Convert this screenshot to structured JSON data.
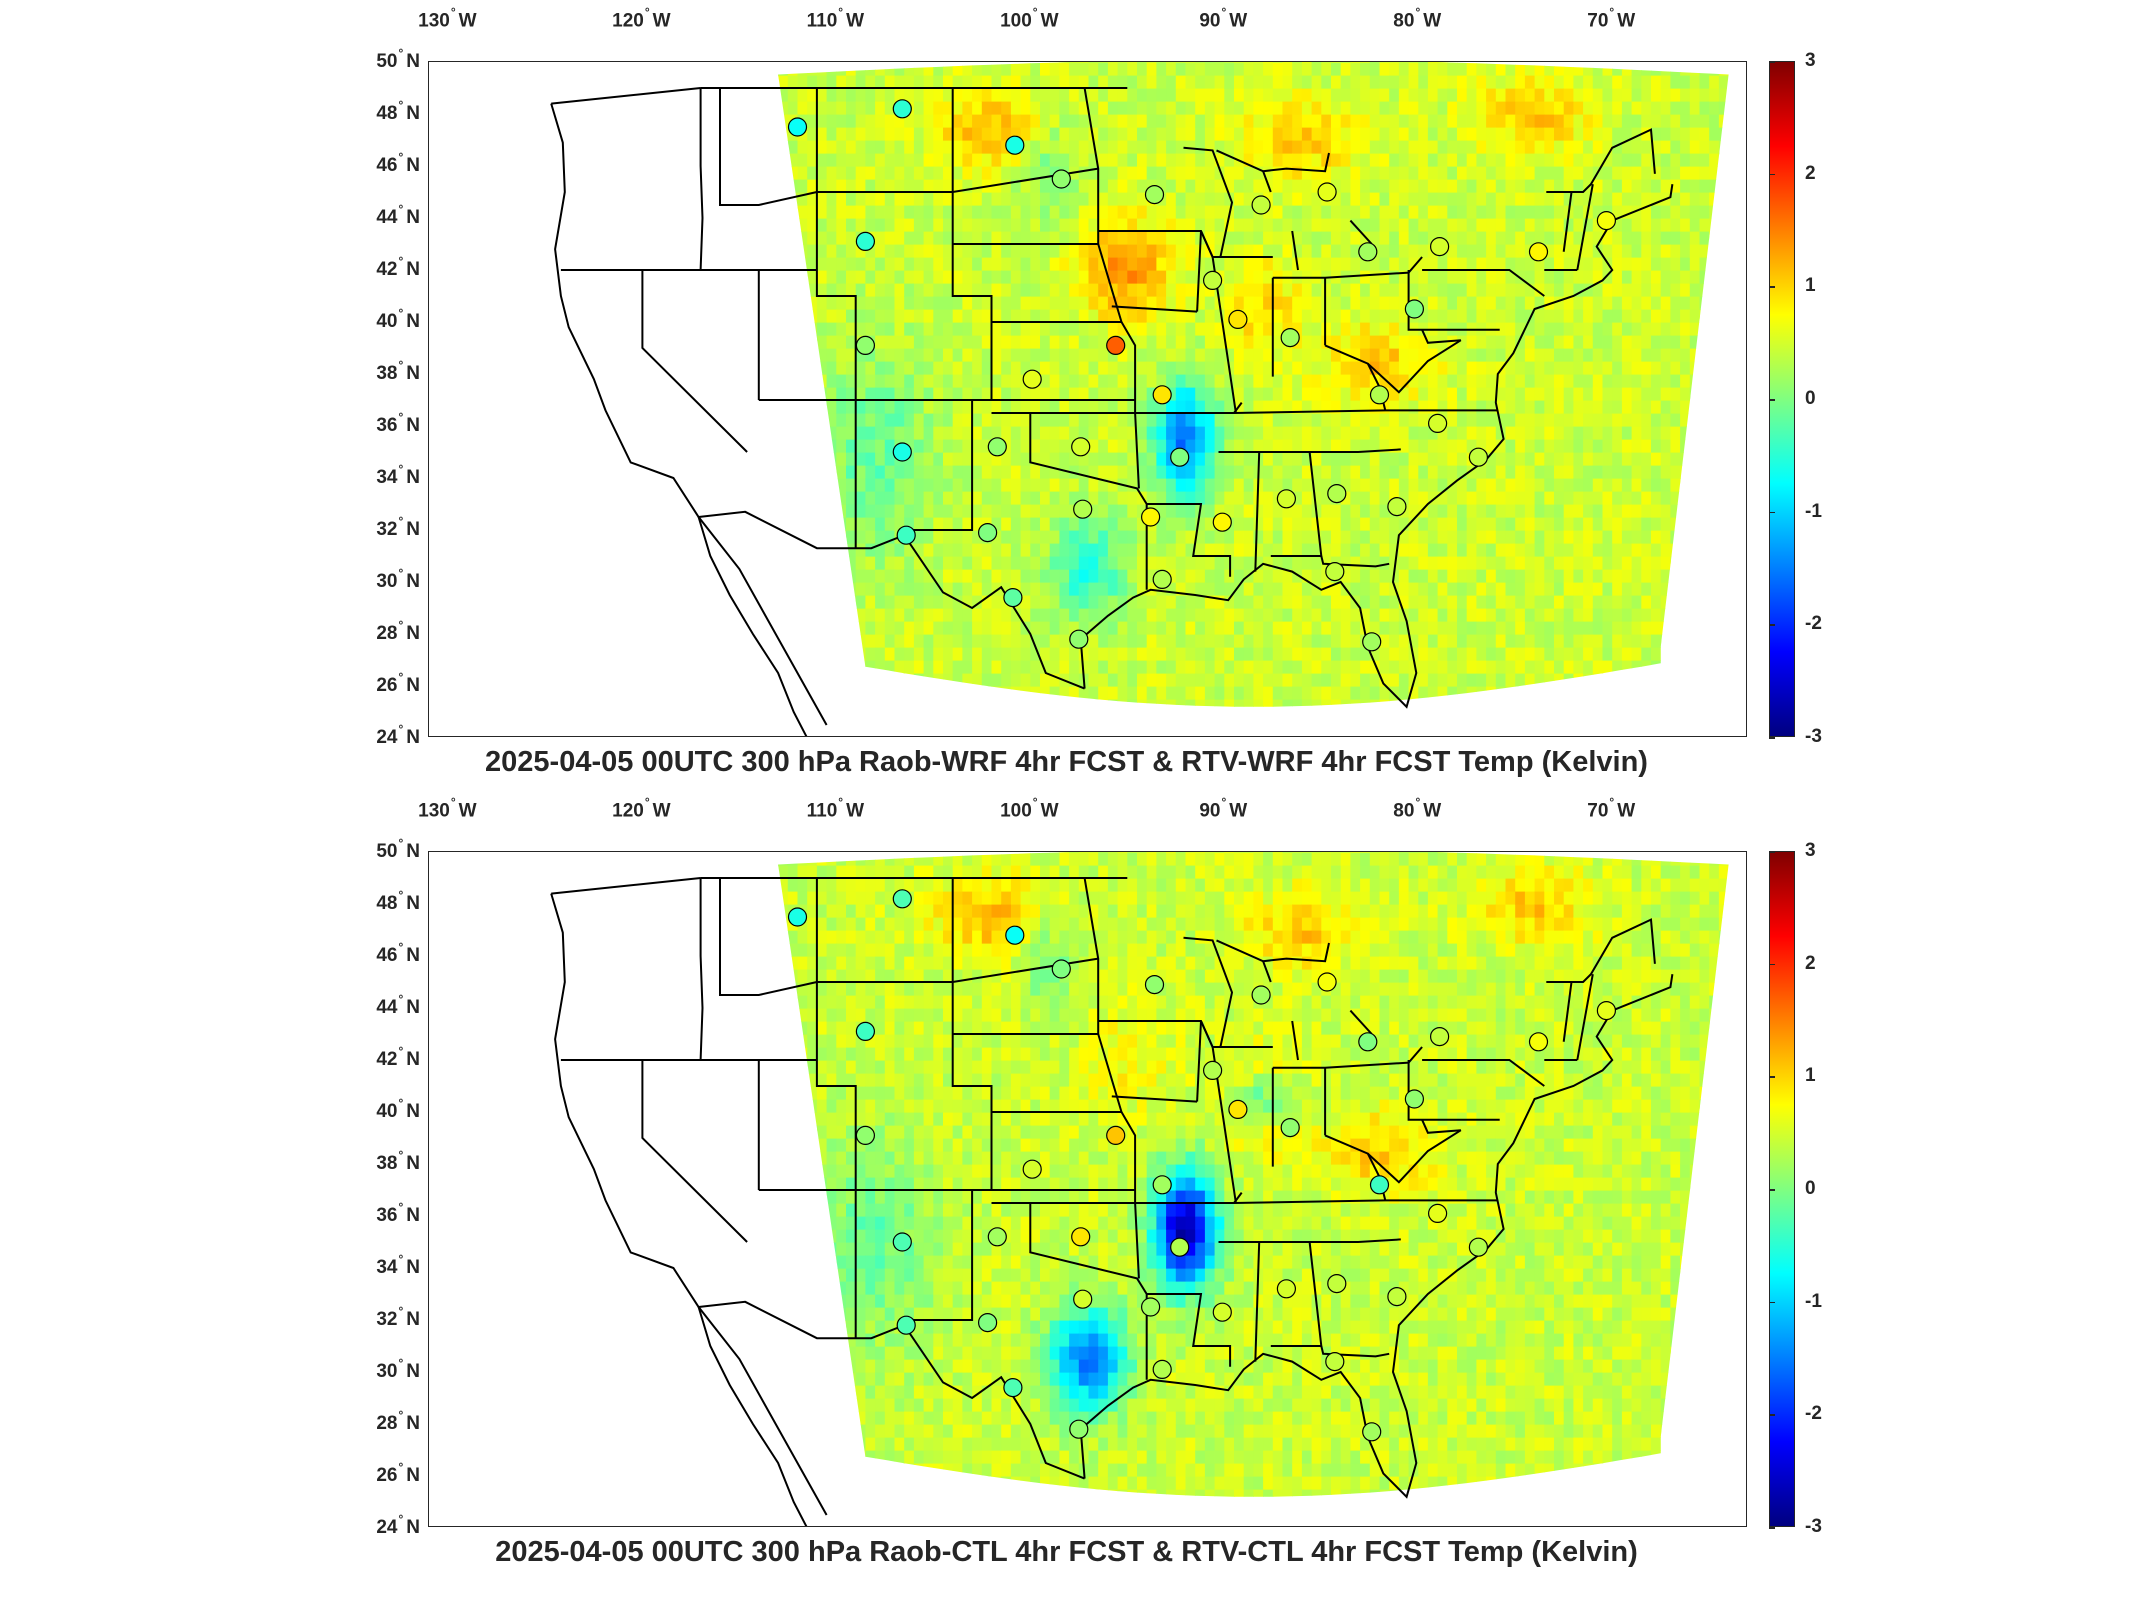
{
  "panels": [
    {
      "id": "top",
      "title": "2025-04-05 00UTC 300 hPa Raob-WRF 4hr FCST & RTV-WRF 4hr FCST Temp (Kelvin)",
      "stations": [
        {
          "lon": -112.0,
          "lat": 47.5,
          "value": -0.7
        },
        {
          "lon": -106.6,
          "lat": 48.2,
          "value": -0.5
        },
        {
          "lon": -100.8,
          "lat": 46.8,
          "value": -0.6
        },
        {
          "lon": -98.4,
          "lat": 45.5,
          "value": 0.1
        },
        {
          "lon": -93.6,
          "lat": 44.9,
          "value": 0.2
        },
        {
          "lon": -88.1,
          "lat": 44.5,
          "value": 0.4
        },
        {
          "lon": -84.7,
          "lat": 45.0,
          "value": 0.6
        },
        {
          "lon": -82.6,
          "lat": 42.7,
          "value": 0.2
        },
        {
          "lon": -78.9,
          "lat": 42.9,
          "value": 0.5
        },
        {
          "lon": -73.8,
          "lat": 42.7,
          "value": 0.8
        },
        {
          "lon": -70.3,
          "lat": 43.9,
          "value": 0.7
        },
        {
          "lon": -108.5,
          "lat": 43.1,
          "value": -0.5
        },
        {
          "lon": -90.6,
          "lat": 41.6,
          "value": 0.4
        },
        {
          "lon": -108.5,
          "lat": 39.1,
          "value": 0.1
        },
        {
          "lon": -89.3,
          "lat": 40.1,
          "value": 0.9
        },
        {
          "lon": -86.6,
          "lat": 39.4,
          "value": 0.2
        },
        {
          "lon": -80.2,
          "lat": 40.5,
          "value": 0.0
        },
        {
          "lon": -95.6,
          "lat": 39.1,
          "value": 1.7
        },
        {
          "lon": -99.9,
          "lat": 37.8,
          "value": 0.6
        },
        {
          "lon": -93.2,
          "lat": 37.2,
          "value": 0.9
        },
        {
          "lon": -82.0,
          "lat": 37.2,
          "value": 0.3
        },
        {
          "lon": -79.0,
          "lat": 36.1,
          "value": 0.5
        },
        {
          "lon": -106.6,
          "lat": 35.0,
          "value": -0.6
        },
        {
          "lon": -101.7,
          "lat": 35.2,
          "value": 0.1
        },
        {
          "lon": -97.4,
          "lat": 35.2,
          "value": 0.5
        },
        {
          "lon": -92.3,
          "lat": 34.8,
          "value": 0.0
        },
        {
          "lon": -76.9,
          "lat": 34.8,
          "value": 0.4
        },
        {
          "lon": -97.3,
          "lat": 32.8,
          "value": 0.3
        },
        {
          "lon": -93.8,
          "lat": 32.5,
          "value": 0.8
        },
        {
          "lon": -90.1,
          "lat": 32.3,
          "value": 0.8
        },
        {
          "lon": -86.8,
          "lat": 33.2,
          "value": 0.5
        },
        {
          "lon": -84.2,
          "lat": 33.4,
          "value": 0.3
        },
        {
          "lon": -81.1,
          "lat": 32.9,
          "value": 0.4
        },
        {
          "lon": -106.4,
          "lat": 31.8,
          "value": -0.4
        },
        {
          "lon": -102.2,
          "lat": 31.9,
          "value": 0.0
        },
        {
          "lon": -93.2,
          "lat": 30.1,
          "value": 0.3
        },
        {
          "lon": -84.3,
          "lat": 30.4,
          "value": 0.4
        },
        {
          "lon": -100.9,
          "lat": 29.4,
          "value": -0.2
        },
        {
          "lon": -97.5,
          "lat": 27.8,
          "value": 0.1
        },
        {
          "lon": -82.4,
          "lat": 27.7,
          "value": 0.2
        }
      ]
    },
    {
      "id": "bottom",
      "title": "2025-04-05 00UTC 300 hPa Raob-CTL 4hr FCST & RTV-CTL 4hr FCST Temp (Kelvin)",
      "stations": [
        {
          "lon": -112.0,
          "lat": 47.5,
          "value": -0.6
        },
        {
          "lon": -106.6,
          "lat": 48.2,
          "value": -0.3
        },
        {
          "lon": -100.8,
          "lat": 46.8,
          "value": -0.7
        },
        {
          "lon": -98.4,
          "lat": 45.5,
          "value": 0.0
        },
        {
          "lon": -93.6,
          "lat": 44.9,
          "value": 0.1
        },
        {
          "lon": -88.1,
          "lat": 44.5,
          "value": 0.2
        },
        {
          "lon": -84.7,
          "lat": 45.0,
          "value": 0.7
        },
        {
          "lon": -82.6,
          "lat": 42.7,
          "value": 0.0
        },
        {
          "lon": -78.9,
          "lat": 42.9,
          "value": 0.4
        },
        {
          "lon": -73.8,
          "lat": 42.7,
          "value": 0.7
        },
        {
          "lon": -70.3,
          "lat": 43.9,
          "value": 0.6
        },
        {
          "lon": -108.5,
          "lat": 43.1,
          "value": -0.4
        },
        {
          "lon": -90.6,
          "lat": 41.6,
          "value": 0.3
        },
        {
          "lon": -108.5,
          "lat": 39.1,
          "value": 0.1
        },
        {
          "lon": -89.3,
          "lat": 40.1,
          "value": 0.9
        },
        {
          "lon": -86.6,
          "lat": 39.4,
          "value": 0.1
        },
        {
          "lon": -80.2,
          "lat": 40.5,
          "value": 0.1
        },
        {
          "lon": -95.6,
          "lat": 39.1,
          "value": 1.1
        },
        {
          "lon": -99.9,
          "lat": 37.8,
          "value": 0.5
        },
        {
          "lon": -93.2,
          "lat": 37.2,
          "value": 0.2
        },
        {
          "lon": -82.0,
          "lat": 37.2,
          "value": -0.4
        },
        {
          "lon": -79.0,
          "lat": 36.1,
          "value": 0.6
        },
        {
          "lon": -106.6,
          "lat": 35.0,
          "value": -0.3
        },
        {
          "lon": -101.7,
          "lat": 35.2,
          "value": 0.2
        },
        {
          "lon": -97.4,
          "lat": 35.2,
          "value": 0.9
        },
        {
          "lon": -92.3,
          "lat": 34.8,
          "value": 0.3
        },
        {
          "lon": -76.9,
          "lat": 34.8,
          "value": 0.3
        },
        {
          "lon": -97.3,
          "lat": 32.8,
          "value": 0.5
        },
        {
          "lon": -93.8,
          "lat": 32.5,
          "value": 0.2
        },
        {
          "lon": -90.1,
          "lat": 32.3,
          "value": 0.5
        },
        {
          "lon": -86.8,
          "lat": 33.2,
          "value": 0.5
        },
        {
          "lon": -84.2,
          "lat": 33.4,
          "value": 0.4
        },
        {
          "lon": -81.1,
          "lat": 32.9,
          "value": 0.4
        },
        {
          "lon": -106.4,
          "lat": 31.8,
          "value": -0.3
        },
        {
          "lon": -102.2,
          "lat": 31.9,
          "value": 0.0
        },
        {
          "lon": -93.2,
          "lat": 30.1,
          "value": 0.3
        },
        {
          "lon": -84.3,
          "lat": 30.4,
          "value": 0.4
        },
        {
          "lon": -100.9,
          "lat": 29.4,
          "value": -0.3
        },
        {
          "lon": -97.5,
          "lat": 27.8,
          "value": 0.1
        },
        {
          "lon": -82.4,
          "lat": 27.7,
          "value": 0.2
        }
      ]
    }
  ],
  "axes": {
    "lon_ticks": [
      {
        "value": -130,
        "deg": "130",
        "hemi": "W"
      },
      {
        "value": -120,
        "deg": "120",
        "hemi": "W"
      },
      {
        "value": -110,
        "deg": "110",
        "hemi": "W"
      },
      {
        "value": -100,
        "deg": "100",
        "hemi": "W"
      },
      {
        "value": -90,
        "deg": "90",
        "hemi": "W"
      },
      {
        "value": -80,
        "deg": "80",
        "hemi": "W"
      },
      {
        "value": -70,
        "deg": "70",
        "hemi": "W"
      }
    ],
    "lat_ticks": [
      {
        "value": 50,
        "deg": "50",
        "hemi": "N"
      },
      {
        "value": 48,
        "deg": "48",
        "hemi": "N"
      },
      {
        "value": 46,
        "deg": "46",
        "hemi": "N"
      },
      {
        "value": 44,
        "deg": "44",
        "hemi": "N"
      },
      {
        "value": 42,
        "deg": "42",
        "hemi": "N"
      },
      {
        "value": 40,
        "deg": "40",
        "hemi": "N"
      },
      {
        "value": 38,
        "deg": "38",
        "hemi": "N"
      },
      {
        "value": 36,
        "deg": "36",
        "hemi": "N"
      },
      {
        "value": 34,
        "deg": "34",
        "hemi": "N"
      },
      {
        "value": 32,
        "deg": "32",
        "hemi": "N"
      },
      {
        "value": 30,
        "deg": "30",
        "hemi": "N"
      },
      {
        "value": 28,
        "deg": "28",
        "hemi": "N"
      },
      {
        "value": 26,
        "deg": "26",
        "hemi": "N"
      },
      {
        "value": 24,
        "deg": "24",
        "hemi": "N"
      }
    ],
    "lon_range": [
      -131,
      -63
    ],
    "lat_range": [
      24,
      50
    ]
  },
  "colorbar": {
    "ticks": [
      "3",
      "2",
      "1",
      "0",
      "-1",
      "-2",
      "-3"
    ],
    "range": [
      -3,
      3
    ],
    "colormap": "jet"
  },
  "colors": {
    "text": "#262626",
    "border": "#000000"
  }
}
